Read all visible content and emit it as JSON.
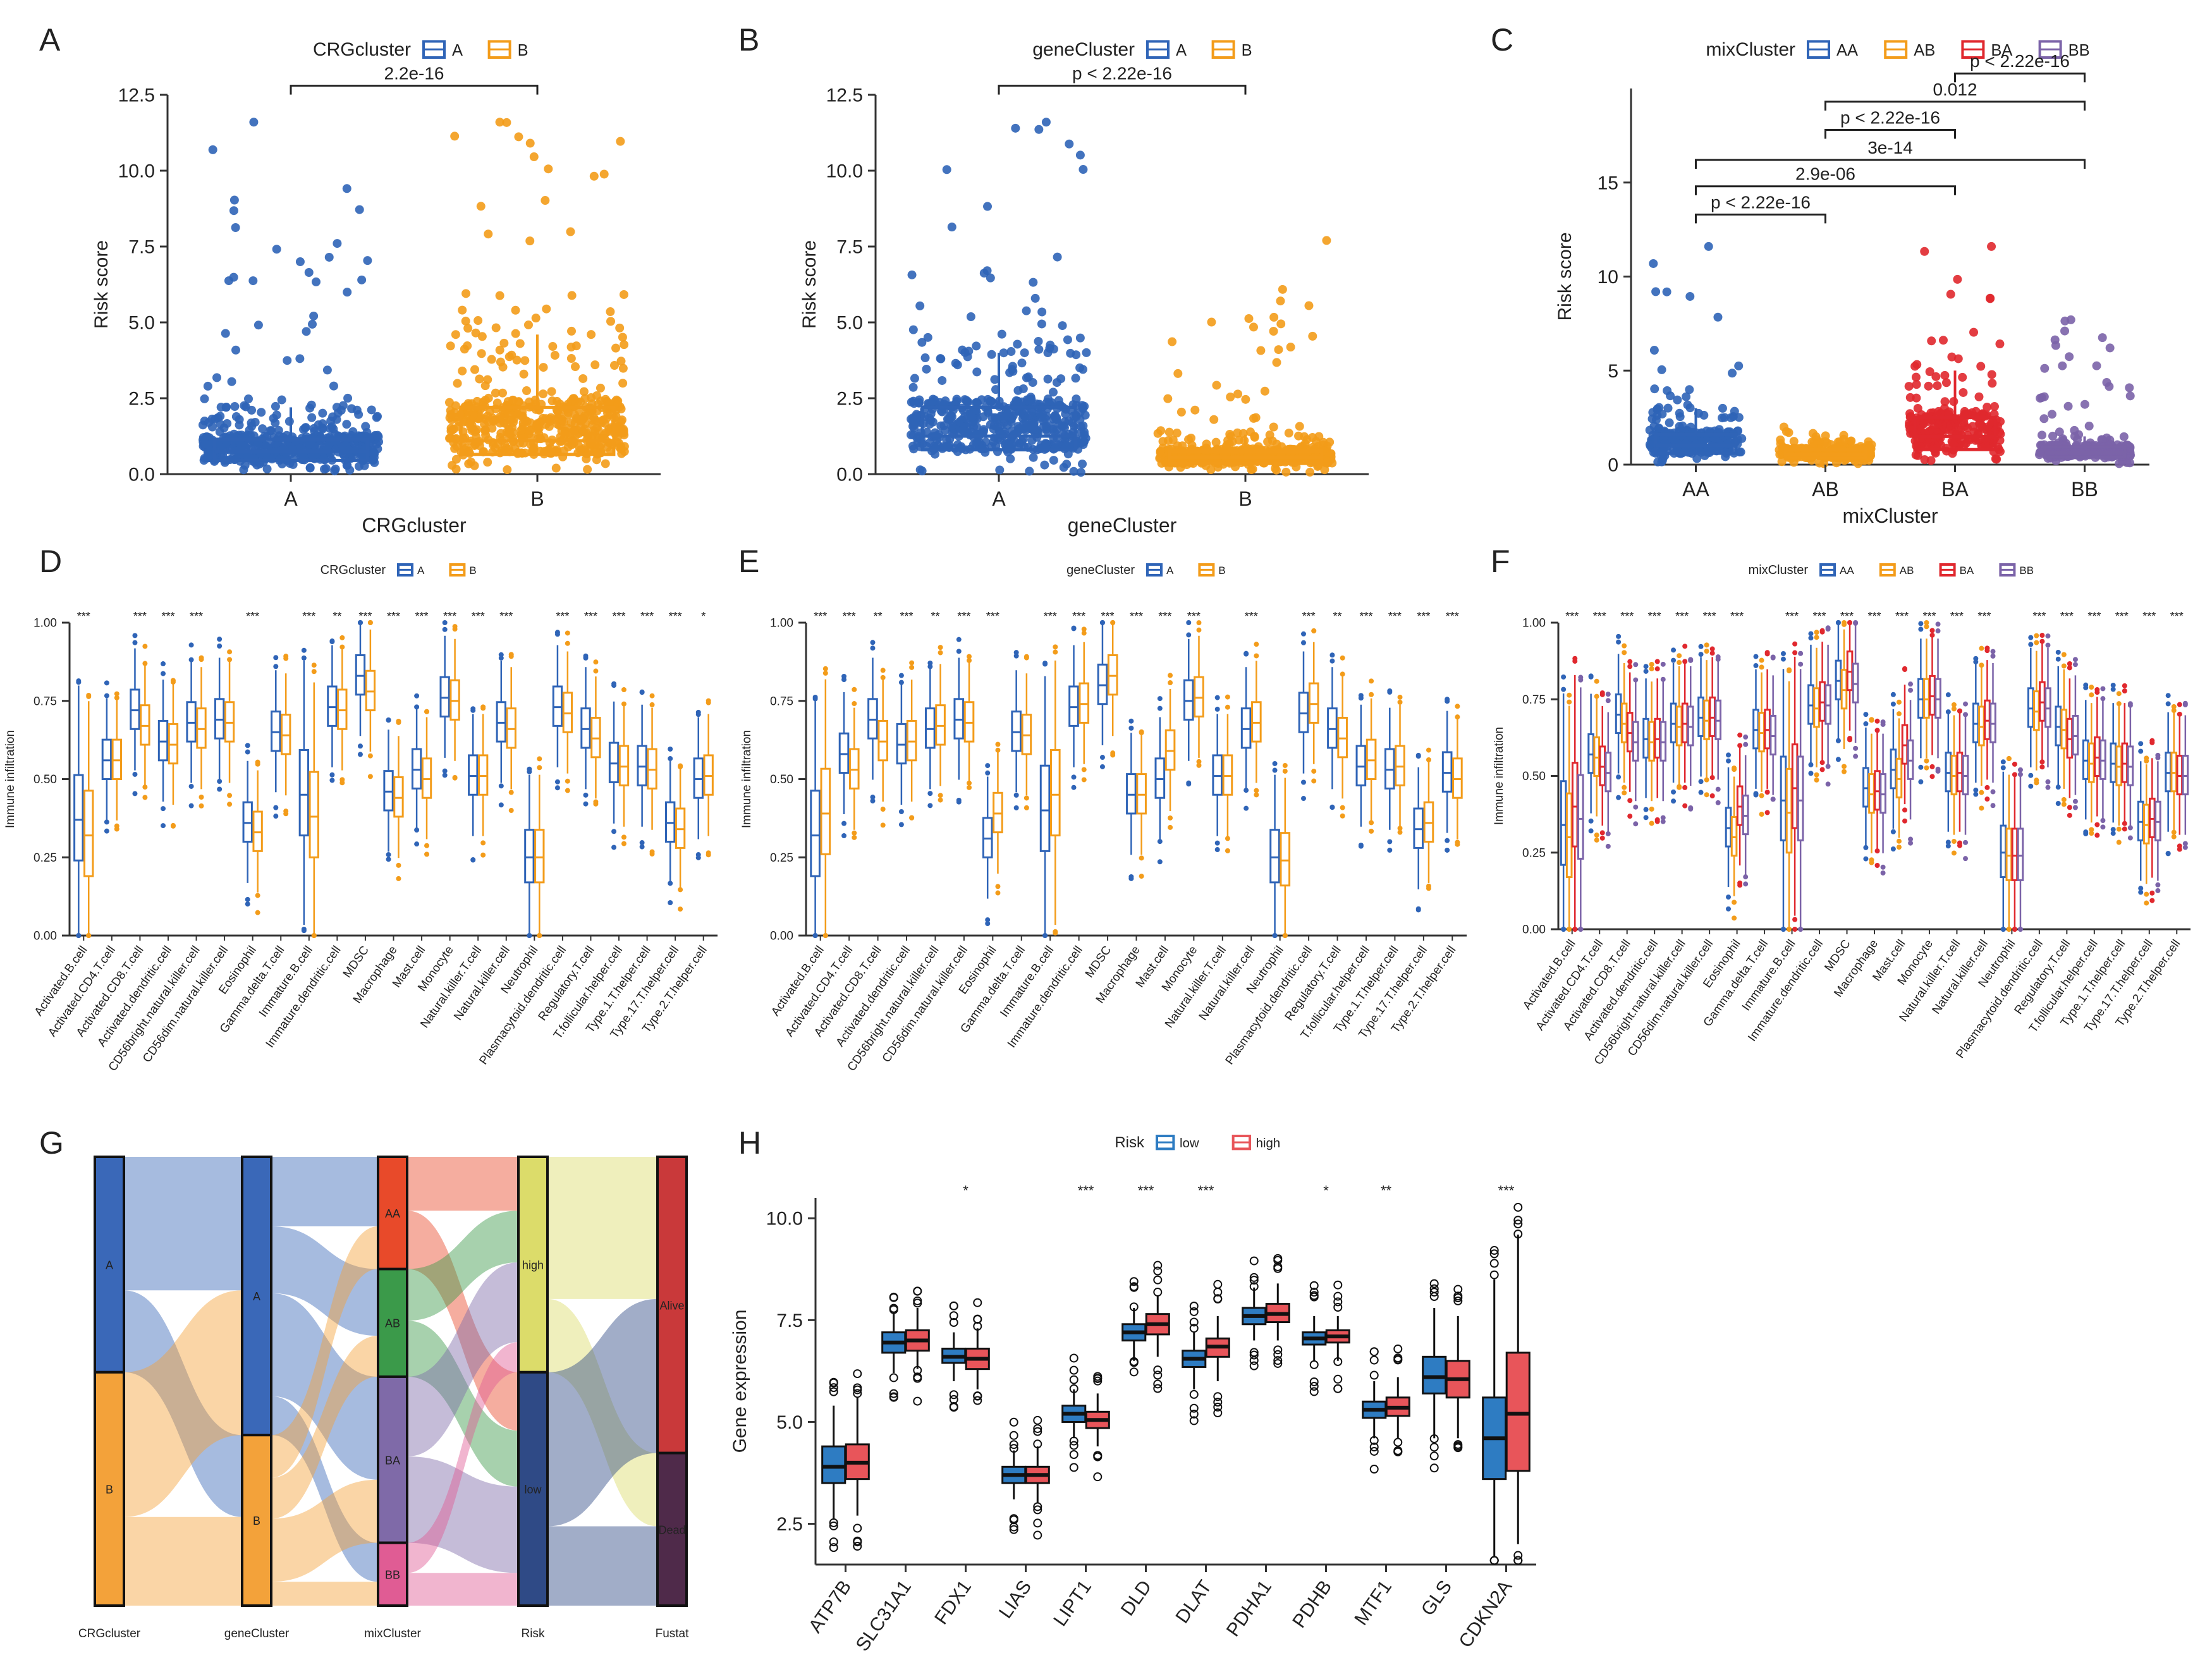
{
  "colors": {
    "blue": "#2f64b7",
    "orange": "#f39c1a",
    "red": "#e0282e",
    "purple": "#7b63a8",
    "low": "#2e7cc2",
    "high": "#e8555a",
    "sankey_A": "#3a68b8",
    "sankey_B": "#f3a23a",
    "mix_AA": "#e84a2a",
    "mix_AB": "#3b9a4a",
    "mix_BA": "#7f6aa8",
    "mix_BB": "#e05c94",
    "risk_high": "#dcdc6a",
    "risk_low": "#2f4a86",
    "fustat_alive": "#c9393a",
    "fustat_dead": "#4f2a4a"
  },
  "panel_letters": [
    "A",
    "B",
    "C",
    "D",
    "E",
    "F",
    "G",
    "H"
  ],
  "chart_data": [
    {
      "id": "A",
      "type": "box",
      "legend_title": "CRGcluster",
      "legend": [
        "A",
        "B"
      ],
      "xlabel": "CRGcluster",
      "ylabel": "Risk score",
      "categories": [
        "A",
        "B"
      ],
      "yticks": [
        "0.0",
        "2.5",
        "5.0",
        "7.5",
        "10.0",
        "12.5"
      ],
      "ylim": [
        0,
        12.5
      ],
      "boxes": [
        {
          "q1": 0.45,
          "median": 0.75,
          "q3": 1.15,
          "whisker_low": 0.05,
          "whisker_high": 2.2,
          "max": 11.6
        },
        {
          "q1": 0.65,
          "median": 1.1,
          "q3": 2.2,
          "whisker_low": 0.05,
          "whisker_high": 4.6,
          "max": 11.6
        }
      ],
      "comparisons": [
        {
          "from": 0,
          "to": 1,
          "label": "2.2e-16"
        }
      ]
    },
    {
      "id": "B",
      "type": "box",
      "legend_title": "geneCluster",
      "legend": [
        "A",
        "B"
      ],
      "xlabel": "geneCluster",
      "ylabel": "Risk score",
      "categories": [
        "A",
        "B"
      ],
      "yticks": [
        "0.0",
        "2.5",
        "5.0",
        "7.5",
        "10.0",
        "12.5"
      ],
      "ylim": [
        0,
        12.5
      ],
      "boxes": [
        {
          "q1": 0.8,
          "median": 1.25,
          "q3": 2.2,
          "whisker_low": 0.05,
          "whisker_high": 4.0,
          "max": 11.6
        },
        {
          "q1": 0.35,
          "median": 0.55,
          "q3": 0.75,
          "whisker_low": 0.05,
          "whisker_high": 1.3,
          "max": 7.7
        }
      ],
      "comparisons": [
        {
          "from": 0,
          "to": 1,
          "label": "p < 2.22e-16"
        }
      ]
    },
    {
      "id": "C",
      "type": "box",
      "legend_title": "mixCluster",
      "legend": [
        "AA",
        "AB",
        "BA",
        "BB"
      ],
      "xlabel": "mixCluster",
      "ylabel": "Risk score",
      "categories": [
        "AA",
        "AB",
        "BA",
        "BB"
      ],
      "yticks": [
        "0",
        "5",
        "10",
        "15"
      ],
      "ylim": [
        0,
        20
      ],
      "boxes": [
        {
          "q1": 0.6,
          "median": 1.0,
          "q3": 1.6,
          "whisker_low": 0.05,
          "whisker_high": 3.0,
          "max": 11.6
        },
        {
          "q1": 0.35,
          "median": 0.55,
          "q3": 0.8,
          "whisker_low": 0.05,
          "whisker_high": 1.2,
          "max": 2.0
        },
        {
          "q1": 0.8,
          "median": 1.5,
          "q3": 2.5,
          "whisker_low": 0.05,
          "whisker_high": 5.0,
          "max": 11.6
        },
        {
          "q1": 0.4,
          "median": 0.65,
          "q3": 0.95,
          "whisker_low": 0.05,
          "whisker_high": 1.5,
          "max": 7.7
        }
      ],
      "comparisons": [
        {
          "from": 0,
          "to": 1,
          "label": "p < 2.22e-16"
        },
        {
          "from": 0,
          "to": 2,
          "label": "2.9e-06"
        },
        {
          "from": 0,
          "to": 3,
          "label": "3e-14"
        },
        {
          "from": 1,
          "to": 2,
          "label": "p < 2.22e-16"
        },
        {
          "from": 1,
          "to": 3,
          "label": "0.012"
        },
        {
          "from": 2,
          "to": 3,
          "label": "p < 2.22e-16"
        }
      ]
    },
    {
      "id": "D",
      "type": "box-multi",
      "legend_title": "CRGcluster",
      "legend": [
        "A",
        "B"
      ],
      "ylabel": "Immune infiltration",
      "yticks": [
        "0.00",
        "0.25",
        "0.50",
        "0.75",
        "1.00"
      ],
      "ylim": [
        0,
        1
      ],
      "categories": [
        "Activated.B.cell",
        "Activated.CD4.T.cell",
        "Activated.CD8.T.cell",
        "Activated.dendritic.cell",
        "CD56bright.natural.killer.cell",
        "CD56dim.natural.killer.cell",
        "Eosinophil",
        "Gamma.delta.T.cell",
        "Immature.B.cell",
        "Immature.dendritic.cell",
        "MDSC",
        "Macrophage",
        "Mast.cell",
        "Monocyte",
        "Natural.killer.T.cell",
        "Natural.killer.cell",
        "Neutrophil",
        "Plasmacytoid.dendritic.cell",
        "Regulatory.T.cell",
        "T.follicular.helper.cell",
        "Type.1.T.helper.cell",
        "Type.17.T.helper.cell",
        "Type.2.T.helper.cell"
      ],
      "medians_A": [
        0.37,
        0.56,
        0.72,
        0.62,
        0.68,
        0.69,
        0.36,
        0.65,
        0.45,
        0.73,
        0.83,
        0.46,
        0.53,
        0.76,
        0.51,
        0.68,
        0.25,
        0.73,
        0.66,
        0.55,
        0.54,
        0.36,
        0.5
      ],
      "medians_B": [
        0.32,
        0.56,
        0.67,
        0.61,
        0.66,
        0.68,
        0.33,
        0.64,
        0.38,
        0.72,
        0.78,
        0.44,
        0.5,
        0.75,
        0.51,
        0.66,
        0.25,
        0.71,
        0.63,
        0.54,
        0.53,
        0.34,
        0.51
      ],
      "significance": [
        "***",
        "",
        "***",
        "***",
        "***",
        "",
        "***",
        "",
        "***",
        "**",
        "***",
        "***",
        "***",
        "***",
        "***",
        "***",
        "",
        "***",
        "***",
        "***",
        "***",
        "***",
        "*"
      ]
    },
    {
      "id": "E",
      "type": "box-multi",
      "legend_title": "geneCluster",
      "legend": [
        "A",
        "B"
      ],
      "ylabel": "Immune infiltration",
      "yticks": [
        "0.00",
        "0.25",
        "0.50",
        "0.75",
        "1.00"
      ],
      "ylim": [
        0,
        1
      ],
      "categories": [
        "Activated.B.cell",
        "Activated.CD4.T.cell",
        "Activated.CD8.T.cell",
        "Activated.dendritic.cell",
        "CD56bright.natural.killer.cell",
        "CD56dim.natural.killer.cell",
        "Eosinophil",
        "Gamma.delta.T.cell",
        "Immature.B.cell",
        "Immature.dendritic.cell",
        "MDSC",
        "Macrophage",
        "Mast.cell",
        "Monocyte",
        "Natural.killer.T.cell",
        "Natural.killer.cell",
        "Neutrophil",
        "Plasmacytoid.dendritic.cell",
        "Regulatory.T.cell",
        "T.follicular.helper.cell",
        "Type.1.T.helper.cell",
        "Type.17.T.helper.cell",
        "Type.2.T.helper.cell"
      ],
      "medians_A": [
        0.32,
        0.58,
        0.69,
        0.61,
        0.66,
        0.69,
        0.31,
        0.65,
        0.4,
        0.73,
        0.8,
        0.45,
        0.5,
        0.75,
        0.51,
        0.66,
        0.25,
        0.71,
        0.66,
        0.54,
        0.53,
        0.34,
        0.52
      ],
      "medians_B": [
        0.39,
        0.53,
        0.62,
        0.62,
        0.67,
        0.68,
        0.39,
        0.64,
        0.45,
        0.74,
        0.83,
        0.45,
        0.59,
        0.76,
        0.51,
        0.68,
        0.24,
        0.74,
        0.63,
        0.56,
        0.54,
        0.36,
        0.5
      ],
      "significance": [
        "***",
        "***",
        "**",
        "***",
        "**",
        "***",
        "***",
        "",
        "***",
        "***",
        "***",
        "***",
        "***",
        "***",
        "",
        "***",
        "",
        "***",
        "**",
        "***",
        "***",
        "***",
        "***"
      ]
    },
    {
      "id": "F",
      "type": "box-multi",
      "legend_title": "mixCluster",
      "legend": [
        "AA",
        "AB",
        "BA",
        "BB"
      ],
      "ylabel": "Immune infiltration",
      "yticks": [
        "0.00",
        "0.25",
        "0.50",
        "0.75",
        "1.00"
      ],
      "ylim": [
        0,
        1
      ],
      "categories": [
        "Activated.B.cell",
        "Activated.CD4.T.cell",
        "Activated.CD8.T.cell",
        "Activated.dendritic.cell",
        "CD56bright.natural.killer.cell",
        "CD56dim.natural.killer.cell",
        "Eosinophil",
        "Gamma.delta.T.cell",
        "Immature.B.cell",
        "Immature.dendritic.cell",
        "MDSC",
        "Macrophage",
        "Mast.cell",
        "Monocyte",
        "Natural.killer.T.cell",
        "Natural.killer.cell",
        "Neutrophil",
        "Plasmacytoid.dendritic.cell",
        "Regulatory.T.cell",
        "T.follicular.helper.cell",
        "Type.1.T.helper.cell",
        "Type.17.T.helper.cell",
        "Type.2.T.helper.cell"
      ],
      "medians_groups": [
        [
          0.34,
          0.57,
          0.7,
          0.62,
          0.67,
          0.69,
          0.33,
          0.65,
          0.42,
          0.73,
          0.81,
          0.46,
          0.52,
          0.75,
          0.51,
          0.67,
          0.25,
          0.72,
          0.66,
          0.55,
          0.54,
          0.35,
          0.51
        ],
        [
          0.3,
          0.56,
          0.67,
          0.61,
          0.66,
          0.68,
          0.3,
          0.64,
          0.38,
          0.72,
          0.78,
          0.44,
          0.49,
          0.75,
          0.5,
          0.66,
          0.24,
          0.71,
          0.65,
          0.54,
          0.53,
          0.34,
          0.51
        ],
        [
          0.4,
          0.53,
          0.64,
          0.62,
          0.67,
          0.69,
          0.4,
          0.65,
          0.46,
          0.74,
          0.84,
          0.45,
          0.6,
          0.76,
          0.51,
          0.68,
          0.24,
          0.74,
          0.62,
          0.56,
          0.54,
          0.36,
          0.5
        ],
        [
          0.36,
          0.51,
          0.61,
          0.61,
          0.66,
          0.68,
          0.37,
          0.63,
          0.42,
          0.73,
          0.8,
          0.44,
          0.55,
          0.75,
          0.5,
          0.67,
          0.24,
          0.72,
          0.63,
          0.55,
          0.53,
          0.35,
          0.5
        ]
      ],
      "significance": [
        "***",
        "***",
        "***",
        "***",
        "***",
        "***",
        "***",
        "",
        "***",
        "***",
        "***",
        "***",
        "***",
        "***",
        "***",
        "***",
        "",
        "***",
        "***",
        "***",
        "***",
        "***",
        "***"
      ]
    },
    {
      "id": "G",
      "type": "sankey",
      "axes": [
        "CRGcluster",
        "geneCluster",
        "mixCluster",
        "Risk",
        "Fustat"
      ],
      "stratum_labels": {
        "CRGcluster": [
          "A",
          "B"
        ],
        "geneCluster": [
          "A",
          "B"
        ],
        "mixCluster": [
          "AA",
          "AB",
          "BA",
          "BB"
        ],
        "Risk": [
          "high",
          "low"
        ],
        "Fustat": [
          "Alive",
          "Dead"
        ]
      },
      "proportions": {
        "CRGcluster": [
          0.48,
          0.52
        ],
        "geneCluster": [
          0.62,
          0.38
        ],
        "mixCluster": [
          0.25,
          0.24,
          0.37,
          0.14
        ],
        "Risk": [
          0.48,
          0.52
        ],
        "Fustat": [
          0.66,
          0.34
        ]
      }
    },
    {
      "id": "H",
      "type": "box-grouped",
      "legend_title": "Risk",
      "legend": [
        "low",
        "high"
      ],
      "ylabel": "Gene expression",
      "yticks": [
        "2.5",
        "5.0",
        "7.5",
        "10.0"
      ],
      "ylim": [
        1.5,
        10.5
      ],
      "categories": [
        "ATP7B",
        "SLC31A1",
        "FDX1",
        "LIAS",
        "LIPT1",
        "DLD",
        "DLAT",
        "PDHA1",
        "PDHB",
        "MTF1",
        "GLS",
        "CDKN2A"
      ],
      "low": [
        {
          "q1": 3.5,
          "median": 3.9,
          "q3": 4.4,
          "wl": 2.6,
          "wh": 5.4
        },
        {
          "q1": 6.7,
          "median": 6.95,
          "q3": 7.2,
          "wl": 6.2,
          "wh": 7.7
        },
        {
          "q1": 6.45,
          "median": 6.6,
          "q3": 6.8,
          "wl": 6.0,
          "wh": 7.2
        },
        {
          "q1": 3.5,
          "median": 3.7,
          "q3": 3.9,
          "wl": 3.1,
          "wh": 4.3
        },
        {
          "q1": 5.0,
          "median": 5.2,
          "q3": 5.4,
          "wl": 4.6,
          "wh": 5.8
        },
        {
          "q1": 7.0,
          "median": 7.2,
          "q3": 7.4,
          "wl": 6.5,
          "wh": 7.8
        },
        {
          "q1": 6.35,
          "median": 6.55,
          "q3": 6.75,
          "wl": 5.8,
          "wh": 7.2
        },
        {
          "q1": 7.4,
          "median": 7.6,
          "q3": 7.8,
          "wl": 7.0,
          "wh": 8.3
        },
        {
          "q1": 6.9,
          "median": 7.05,
          "q3": 7.2,
          "wl": 6.5,
          "wh": 7.6
        },
        {
          "q1": 5.1,
          "median": 5.3,
          "q3": 5.5,
          "wl": 4.6,
          "wh": 6.0
        },
        {
          "q1": 5.7,
          "median": 6.1,
          "q3": 6.6,
          "wl": 4.6,
          "wh": 7.8
        },
        {
          "q1": 3.6,
          "median": 4.6,
          "q3": 5.6,
          "wl": 1.7,
          "wh": 8.5
        }
      ],
      "high": [
        {
          "q1": 3.6,
          "median": 4.0,
          "q3": 4.45,
          "wl": 2.7,
          "wh": 5.6
        },
        {
          "q1": 6.75,
          "median": 7.0,
          "q3": 7.25,
          "wl": 6.3,
          "wh": 7.8
        },
        {
          "q1": 6.3,
          "median": 6.55,
          "q3": 6.8,
          "wl": 5.8,
          "wh": 7.3
        },
        {
          "q1": 3.5,
          "median": 3.7,
          "q3": 3.9,
          "wl": 3.0,
          "wh": 4.4
        },
        {
          "q1": 4.85,
          "median": 5.05,
          "q3": 5.25,
          "wl": 4.4,
          "wh": 5.7
        },
        {
          "q1": 7.15,
          "median": 7.4,
          "q3": 7.65,
          "wl": 6.6,
          "wh": 8.1
        },
        {
          "q1": 6.6,
          "median": 6.85,
          "q3": 7.05,
          "wl": 6.0,
          "wh": 7.6
        },
        {
          "q1": 7.45,
          "median": 7.65,
          "q3": 7.9,
          "wl": 7.0,
          "wh": 8.4
        },
        {
          "q1": 6.95,
          "median": 7.1,
          "q3": 7.25,
          "wl": 6.5,
          "wh": 7.6
        },
        {
          "q1": 5.15,
          "median": 5.35,
          "q3": 5.6,
          "wl": 4.6,
          "wh": 6.1
        },
        {
          "q1": 5.6,
          "median": 6.05,
          "q3": 6.5,
          "wl": 4.6,
          "wh": 7.6
        },
        {
          "q1": 3.8,
          "median": 5.2,
          "q3": 6.7,
          "wl": 2.0,
          "wh": 9.6
        }
      ],
      "significance": [
        "",
        "",
        "*",
        "",
        "***",
        "***",
        "***",
        "",
        "*",
        "**",
        "",
        "***"
      ]
    }
  ]
}
